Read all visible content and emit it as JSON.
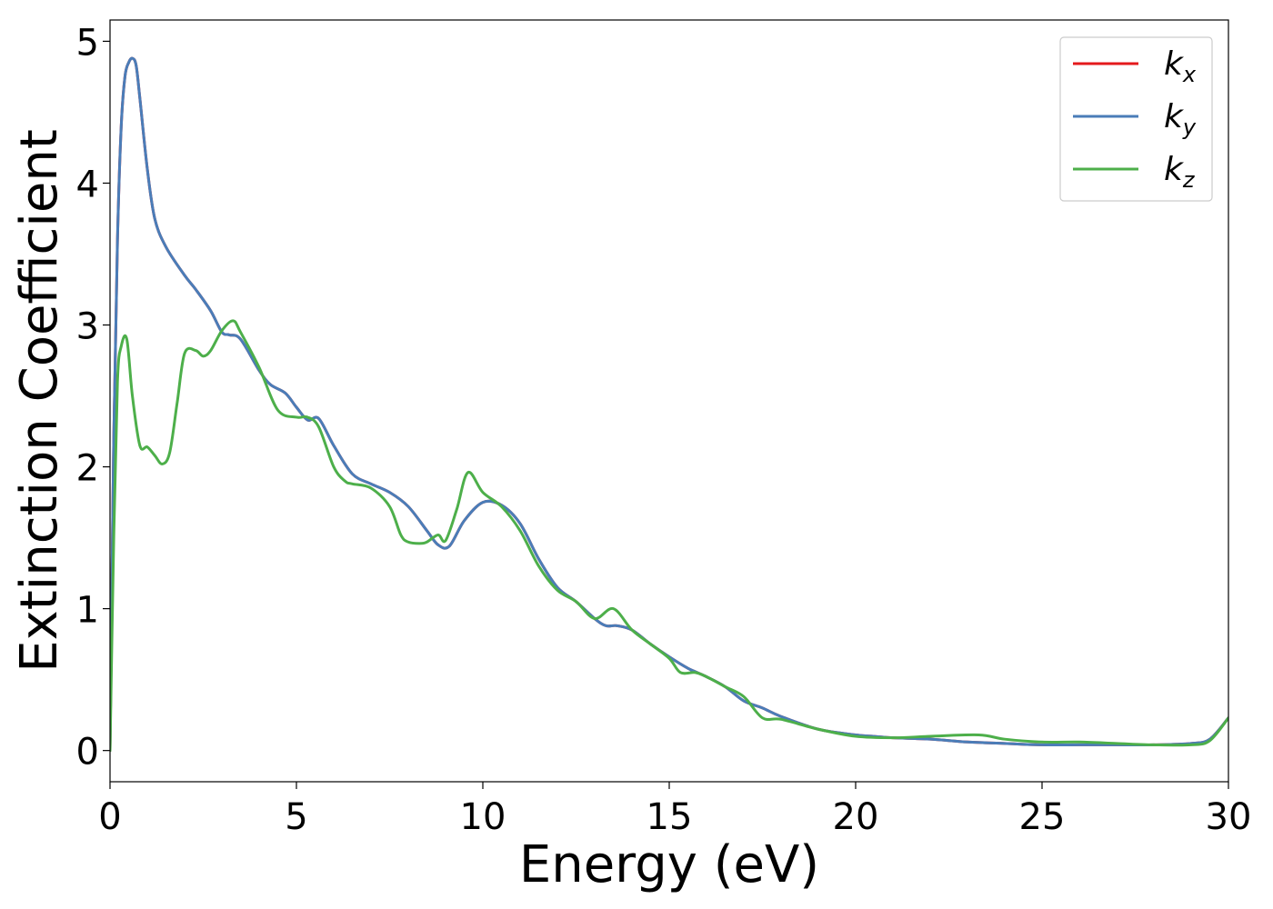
{
  "chart_data": {
    "type": "line",
    "title": "",
    "xlabel": "Energy (eV)",
    "ylabel": "Extinction Coefficient",
    "xlim": [
      0,
      30
    ],
    "ylim": [
      -0.22,
      5.15
    ],
    "xticks": [
      0,
      5,
      10,
      15,
      20,
      25,
      30
    ],
    "xtick_labels": [
      "0",
      "5",
      "10",
      "15",
      "20",
      "25",
      "30"
    ],
    "yticks": [
      0,
      1,
      2,
      3,
      4,
      5
    ],
    "ytick_labels": [
      "0",
      "1",
      "2",
      "3",
      "4",
      "5"
    ],
    "grid": false,
    "legend_position": "top-right",
    "series": [
      {
        "name": "k",
        "subscript": "x",
        "color": "#e41a1c",
        "x": [
          0,
          0.1,
          0.2,
          0.3,
          0.4,
          0.5,
          0.6,
          0.7,
          0.8,
          1.0,
          1.2,
          1.5,
          2.0,
          2.3,
          2.7,
          3.0,
          3.2,
          3.5,
          4.0,
          4.3,
          4.7,
          5.0,
          5.3,
          5.6,
          6.0,
          6.5,
          7.0,
          7.5,
          8.0,
          8.5,
          8.8,
          9.1,
          9.5,
          10.0,
          10.5,
          11.0,
          11.5,
          12.0,
          12.5,
          13.0,
          13.3,
          13.6,
          14.0,
          14.5,
          15.0,
          15.5,
          16.0,
          16.5,
          17.0,
          17.5,
          18.0,
          19.0,
          20.0,
          20.5,
          21.0,
          22.0,
          23.0,
          24.0,
          25.0,
          26.0,
          27.0,
          28.0,
          29.0,
          29.5,
          30.0
        ],
        "y": [
          0,
          2.2,
          3.6,
          4.4,
          4.75,
          4.85,
          4.88,
          4.83,
          4.6,
          4.1,
          3.75,
          3.55,
          3.35,
          3.25,
          3.1,
          2.95,
          2.93,
          2.9,
          2.68,
          2.58,
          2.52,
          2.42,
          2.33,
          2.34,
          2.15,
          1.95,
          1.88,
          1.82,
          1.72,
          1.55,
          1.45,
          1.44,
          1.62,
          1.75,
          1.73,
          1.6,
          1.35,
          1.15,
          1.05,
          0.93,
          0.88,
          0.88,
          0.85,
          0.75,
          0.66,
          0.58,
          0.52,
          0.45,
          0.35,
          0.3,
          0.24,
          0.15,
          0.11,
          0.1,
          0.09,
          0.08,
          0.06,
          0.05,
          0.04,
          0.04,
          0.04,
          0.04,
          0.05,
          0.08,
          0.23
        ]
      },
      {
        "name": "k",
        "subscript": "y",
        "color": "#4a7db8",
        "x": [
          0,
          0.1,
          0.2,
          0.3,
          0.4,
          0.5,
          0.6,
          0.7,
          0.8,
          1.0,
          1.2,
          1.5,
          2.0,
          2.3,
          2.7,
          3.0,
          3.2,
          3.5,
          4.0,
          4.3,
          4.7,
          5.0,
          5.3,
          5.6,
          6.0,
          6.5,
          7.0,
          7.5,
          8.0,
          8.5,
          8.8,
          9.1,
          9.5,
          10.0,
          10.5,
          11.0,
          11.5,
          12.0,
          12.5,
          13.0,
          13.3,
          13.6,
          14.0,
          14.5,
          15.0,
          15.5,
          16.0,
          16.5,
          17.0,
          17.5,
          18.0,
          19.0,
          20.0,
          20.5,
          21.0,
          22.0,
          23.0,
          24.0,
          25.0,
          26.0,
          27.0,
          28.0,
          29.0,
          29.5,
          30.0
        ],
        "y": [
          0,
          2.2,
          3.6,
          4.4,
          4.75,
          4.85,
          4.88,
          4.83,
          4.6,
          4.1,
          3.75,
          3.55,
          3.35,
          3.25,
          3.1,
          2.95,
          2.93,
          2.9,
          2.68,
          2.58,
          2.52,
          2.42,
          2.33,
          2.34,
          2.15,
          1.95,
          1.88,
          1.82,
          1.72,
          1.55,
          1.45,
          1.44,
          1.62,
          1.75,
          1.73,
          1.6,
          1.35,
          1.15,
          1.05,
          0.93,
          0.88,
          0.88,
          0.85,
          0.75,
          0.66,
          0.58,
          0.52,
          0.45,
          0.35,
          0.3,
          0.24,
          0.15,
          0.11,
          0.1,
          0.09,
          0.08,
          0.06,
          0.05,
          0.04,
          0.04,
          0.04,
          0.04,
          0.05,
          0.08,
          0.23
        ]
      },
      {
        "name": "k",
        "subscript": "z",
        "color": "#4daf4a",
        "x": [
          0,
          0.1,
          0.2,
          0.3,
          0.45,
          0.6,
          0.8,
          1.0,
          1.2,
          1.4,
          1.6,
          1.8,
          2.0,
          2.3,
          2.5,
          2.7,
          3.0,
          3.3,
          3.5,
          4.0,
          4.5,
          5.0,
          5.3,
          5.6,
          6.0,
          6.3,
          6.5,
          7.0,
          7.5,
          7.8,
          8.0,
          8.3,
          8.5,
          8.8,
          9.0,
          9.3,
          9.6,
          10.0,
          10.5,
          11.0,
          11.5,
          12.0,
          12.5,
          13.0,
          13.5,
          14.0,
          14.5,
          15.0,
          15.3,
          15.7,
          16.0,
          16.5,
          17.0,
          17.5,
          18.0,
          19.0,
          20.0,
          21.0,
          22.0,
          23.3,
          24.0,
          25.0,
          26.0,
          27.0,
          28.0,
          29.0,
          29.5,
          30.0
        ],
        "y": [
          0,
          1.5,
          2.6,
          2.85,
          2.9,
          2.5,
          2.15,
          2.14,
          2.08,
          2.02,
          2.1,
          2.45,
          2.8,
          2.82,
          2.78,
          2.82,
          2.96,
          3.03,
          2.95,
          2.7,
          2.4,
          2.35,
          2.35,
          2.28,
          2.0,
          1.9,
          1.88,
          1.85,
          1.72,
          1.52,
          1.47,
          1.46,
          1.47,
          1.52,
          1.48,
          1.7,
          1.96,
          1.82,
          1.72,
          1.55,
          1.3,
          1.13,
          1.05,
          0.93,
          1.0,
          0.85,
          0.75,
          0.65,
          0.55,
          0.55,
          0.52,
          0.45,
          0.38,
          0.23,
          0.22,
          0.15,
          0.1,
          0.09,
          0.1,
          0.11,
          0.08,
          0.06,
          0.06,
          0.05,
          0.04,
          0.04,
          0.07,
          0.23
        ]
      }
    ]
  }
}
